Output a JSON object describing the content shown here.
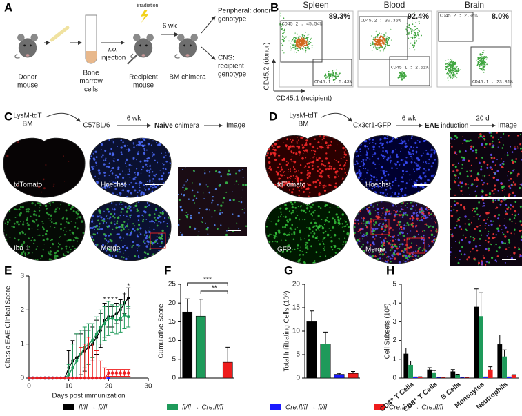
{
  "panel_a": {
    "label": "A",
    "donor": [
      "Donor",
      "mouse"
    ],
    "bone_marrow": [
      "Bone",
      "marrow",
      "cells"
    ],
    "injection": [
      "r.o.",
      "injection"
    ],
    "irradiation": "irradiation",
    "recipient": [
      "Recipient",
      "mouse"
    ],
    "interval": "6 wk",
    "chimera": "BM chimera",
    "peripheral": [
      "Peripheral: donor",
      "genotype"
    ],
    "cns": [
      "CNS:",
      "recipient",
      "genotype"
    ]
  },
  "panel_b": {
    "label": "B",
    "plots": [
      {
        "title": "Spleen",
        "percent": "89.3%",
        "upper_gate": "CD45.2 : 45.54%",
        "lower_gate": "CD45.1 : 5.43%"
      },
      {
        "title": "Blood",
        "percent": "92.4%",
        "upper_gate": "CD45.2 : 30.36%",
        "lower_gate": "CD45.1 : 2.51%"
      },
      {
        "title": "Brain",
        "percent": "8.0%",
        "upper_gate": "CD45.2 : 2.06%",
        "lower_gate": "CD45.1 : 23.81%"
      }
    ],
    "y_axis": "CD45.2 (donor)",
    "x_axis": "CD45.1 (recipient)"
  },
  "panel_c": {
    "label": "C",
    "bm": [
      "LysM-tdT",
      "BM"
    ],
    "host": "C57BL/6",
    "interval": "6 wk",
    "state": "Naive",
    "chimera": "chimera",
    "image": "Image",
    "channels": [
      "tdTomato",
      "Hoechst",
      "Iba-1",
      "Merge"
    ]
  },
  "panel_d": {
    "label": "D",
    "bm": [
      "LysM-tdT",
      "BM"
    ],
    "host": "Cx3cr1-GFP",
    "interval": "6 wk",
    "state": "EAE",
    "induction": "induction",
    "interval2": "20 d",
    "image": "Image",
    "channels": [
      "tdTomato",
      "Hoechst",
      "GFP",
      "Merge"
    ]
  },
  "chart_data": [
    {
      "type": "line",
      "panel": "E",
      "y_label": "Classic EAE Clinical Score",
      "x_label": "Days post immunization",
      "x": [
        0,
        1,
        2,
        3,
        4,
        5,
        6,
        7,
        8,
        9,
        10,
        11,
        12,
        13,
        14,
        15,
        16,
        17,
        18,
        19,
        20,
        21,
        22,
        23,
        24,
        25
      ],
      "xlim": [
        0,
        30
      ],
      "xticks": [
        0,
        10,
        20,
        30
      ],
      "ylim": [
        0,
        3
      ],
      "yticks": [
        0,
        1,
        2,
        3
      ],
      "series": [
        {
          "name": "fl/fl → fl/fl",
          "color": "#000000",
          "values": [
            0,
            0,
            0,
            0,
            0,
            0,
            0,
            0,
            0,
            0,
            0.3,
            0.5,
            0.6,
            0.7,
            0.8,
            0.9,
            1.0,
            1.2,
            1.4,
            1.7,
            1.8,
            1.8,
            1.9,
            2.0,
            2.2,
            2.35
          ],
          "errors": [
            0,
            0,
            0,
            0,
            0,
            0,
            0,
            0,
            0,
            0,
            0.5,
            0.6,
            0.7,
            0.6,
            0.6,
            0.5,
            0.5,
            0.5,
            0.5,
            0.5,
            0.3,
            0.3,
            0.3,
            0.3,
            0.3,
            0.3
          ]
        },
        {
          "name": "fl/fl → Cre:fl/fl",
          "color": "#1e9a5a",
          "values": [
            0,
            0,
            0,
            0,
            0,
            0,
            0,
            0,
            0,
            0,
            0.1,
            0.3,
            0.5,
            0.7,
            0.9,
            1.0,
            1.1,
            1.3,
            1.5,
            1.6,
            1.75,
            1.75,
            1.7,
            1.75,
            1.85,
            1.8
          ],
          "errors": [
            0,
            0,
            0,
            0,
            0,
            0,
            0,
            0,
            0,
            0,
            0.3,
            0.7,
            0.8,
            0.7,
            0.6,
            0.6,
            0.5,
            0.5,
            0.5,
            0.5,
            0.5,
            0.4,
            0.4,
            0.4,
            0.4,
            0.3
          ]
        },
        {
          "name": "Cre:fl/fl → fl/fl",
          "color": "#1a1aff",
          "values": [
            0,
            0,
            0,
            0,
            0,
            0,
            0,
            0,
            0,
            0,
            0,
            0,
            0,
            0,
            0,
            0,
            0,
            0,
            0,
            0,
            0,
            null,
            null,
            null,
            null,
            null
          ]
        },
        {
          "name": "Cre:fl/fl → Cre:fl/fl",
          "color": "#ee1c1c",
          "values": [
            0,
            0,
            0,
            0,
            0,
            0,
            0,
            0,
            0,
            0,
            0,
            0,
            0,
            0,
            0,
            0,
            0,
            0,
            0,
            0,
            0.15,
            0.15,
            0.15,
            0.15,
            0.15,
            0.15
          ],
          "errors": [
            0,
            0,
            0,
            0,
            0,
            0,
            0,
            0,
            0,
            0,
            0,
            0,
            0,
            0.9,
            1.0,
            1.2,
            1.0,
            0.8,
            0.5,
            0.3,
            0.1,
            0.1,
            0.1,
            0.1,
            0.1,
            0.1
          ]
        }
      ],
      "annotations": [
        {
          "text": "*",
          "x": 19,
          "y": 2.3
        },
        {
          "text": "*",
          "x": 20,
          "y": 2.3
        },
        {
          "text": "*",
          "x": 21,
          "y": 2.3
        },
        {
          "text": "*",
          "x": 22,
          "y": 2.3
        },
        {
          "text": "*",
          "x": 24,
          "y": 2.45
        },
        {
          "text": "*",
          "x": 25,
          "y": 2.7
        }
      ]
    },
    {
      "type": "bar",
      "panel": "F",
      "y_label": "Cumulative Score",
      "values": [
        17.6,
        16.5,
        0,
        4.2
      ],
      "errors": [
        3.5,
        4.5,
        0,
        4
      ],
      "colors": [
        "#000000",
        "#1e9a5a",
        "#1a1aff",
        "#ee1c1c"
      ],
      "ylim": [
        0,
        25
      ],
      "yticks": [
        0,
        5,
        10,
        15,
        20,
        25
      ],
      "significance": [
        {
          "text": "***",
          "from": 0,
          "to": 3
        },
        {
          "text": "**",
          "from": 1,
          "to": 3
        }
      ]
    },
    {
      "type": "bar",
      "panel": "G",
      "y_label": "Total Infiltrating Cells (10⁶)",
      "values": [
        12,
        7.3,
        0.8,
        1.0
      ],
      "errors": [
        2.3,
        2.5,
        0.2,
        0.4
      ],
      "colors": [
        "#000000",
        "#1e9a5a",
        "#1a1aff",
        "#ee1c1c"
      ],
      "ylim": [
        0,
        20
      ],
      "yticks": [
        0,
        5,
        10,
        15,
        20
      ]
    },
    {
      "type": "grouped_bar",
      "panel": "H",
      "y_label": "Cell Subsets (10⁶)",
      "categories": [
        "CD4⁺ T Cells",
        "CD8⁺ T Cells",
        "B Cells",
        "Monocytes",
        "Neutrophils"
      ],
      "ylim": [
        0,
        5
      ],
      "yticks": [
        0,
        1,
        2,
        3,
        4,
        5
      ],
      "series": [
        {
          "color": "#000000",
          "values": [
            1.3,
            0.45,
            0.35,
            3.8,
            1.8
          ],
          "errors": [
            0.3,
            0.1,
            0.1,
            0.95,
            0.5
          ]
        },
        {
          "color": "#1e9a5a",
          "values": [
            0.7,
            0.3,
            0.15,
            3.3,
            1.15
          ],
          "errors": [
            0.2,
            0.1,
            0.05,
            1.25,
            0.35
          ]
        },
        {
          "color": "#1a1aff",
          "values": [
            0.05,
            0.02,
            0.02,
            0.05,
            0.05
          ],
          "errors": [
            0.01,
            0.01,
            0.01,
            0.01,
            0.01
          ]
        },
        {
          "color": "#ee1c1c",
          "values": [
            0.05,
            0.02,
            0.02,
            0.45,
            0.15
          ],
          "errors": [
            0.02,
            0.01,
            0.01,
            0.15,
            0.03
          ]
        }
      ]
    }
  ]
}
